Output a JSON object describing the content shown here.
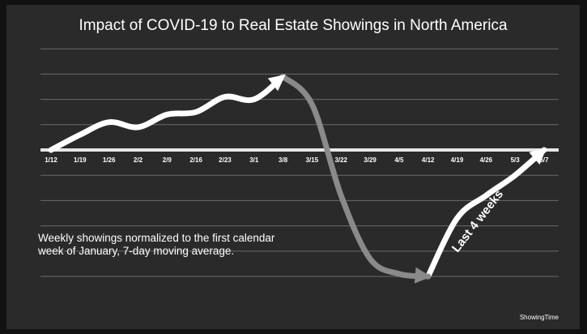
{
  "chart_data": {
    "type": "line",
    "title": "Impact of COVID-19 to Real Estate Showings in North America",
    "categories": [
      "1/12",
      "1/19",
      "1/26",
      "2/2",
      "2/9",
      "2/16",
      "2/23",
      "3/1",
      "3/8",
      "3/15",
      "3/22",
      "3/29",
      "4/5",
      "4/12",
      "4/19",
      "4/26",
      "5/3",
      "5/7"
    ],
    "values": [
      0,
      0.6,
      1.1,
      0.9,
      1.4,
      1.5,
      2.1,
      2.0,
      2.9,
      1.8,
      -1.8,
      -4.3,
      -4.9,
      -5.0,
      -2.7,
      -1.8,
      -1.0,
      0
    ],
    "color": "#ffffff",
    "fall_color": "#8a8a8a",
    "fall_range": [
      "3/8",
      "4/12"
    ],
    "ylim": [
      -5.5,
      4.5
    ],
    "yticks": [
      -5,
      -4,
      -3,
      -2,
      -1,
      0,
      1,
      2,
      3,
      4
    ],
    "baseline": 0,
    "grid": true,
    "annotations": [
      "Weekly showings normalized to the first calendar week of January, 7-day moving average.",
      "Last 4 weeks"
    ],
    "source": "ShowingTime"
  }
}
